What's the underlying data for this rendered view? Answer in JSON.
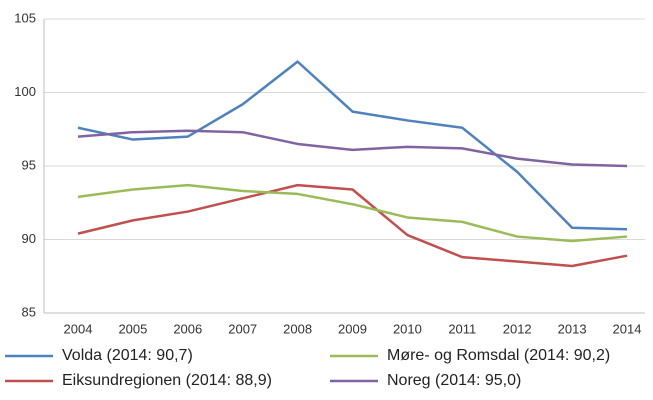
{
  "chart_data": {
    "type": "line",
    "categories": [
      "2004",
      "2005",
      "2006",
      "2007",
      "2008",
      "2009",
      "2010",
      "2011",
      "2012",
      "2013",
      "2014"
    ],
    "series": [
      {
        "name": "Volda (2014: 90,7)",
        "color": "#4f81bd",
        "values": [
          97.6,
          96.8,
          97.0,
          99.2,
          102.1,
          98.7,
          98.1,
          97.6,
          94.6,
          90.8,
          90.7
        ]
      },
      {
        "name": "Eiksundregionen (2014: 88,9)",
        "color": "#c0504d",
        "values": [
          90.4,
          91.3,
          91.9,
          92.8,
          93.7,
          93.4,
          90.3,
          88.8,
          88.5,
          88.2,
          88.9
        ]
      },
      {
        "name": "Møre- og Romsdal (2014: 90,2)",
        "color": "#9bbb59",
        "values": [
          92.9,
          93.4,
          93.7,
          93.3,
          93.1,
          92.4,
          91.5,
          91.2,
          90.2,
          89.9,
          90.2
        ]
      },
      {
        "name": "Noreg (2014: 95,0)",
        "color": "#8064a2",
        "values": [
          97.0,
          97.3,
          97.4,
          97.3,
          96.5,
          96.1,
          96.3,
          96.2,
          95.5,
          95.1,
          95.0
        ]
      }
    ],
    "ylim": [
      85,
      105
    ],
    "yticks": [
      85,
      90,
      95,
      100,
      105
    ],
    "grid": true
  }
}
